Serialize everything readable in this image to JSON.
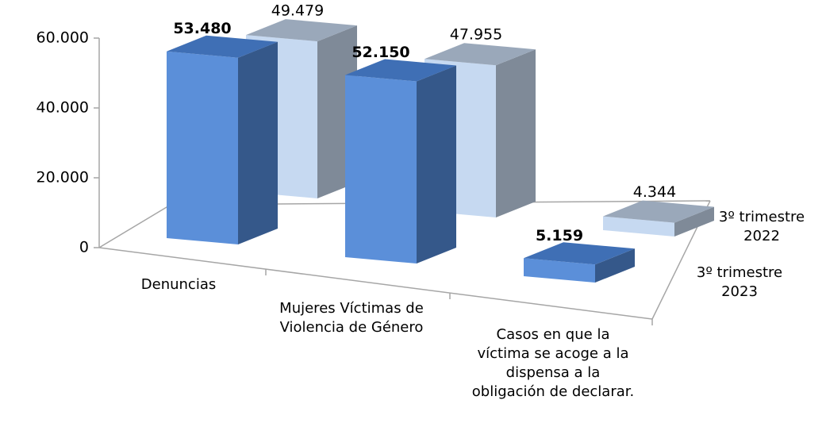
{
  "chart_data": {
    "type": "bar3d",
    "categories": [
      "Denuncias",
      "Mujeres Víctimas de Violencia de Género",
      "Casos en que la víctima se acoge a la dispensa a la obligación de declarar."
    ],
    "series": [
      {
        "name": "3º trimestre 2023",
        "color": "#5b8fd9",
        "values": [
          53480,
          52150,
          5159
        ],
        "value_labels": [
          "53.480",
          "52.150",
          "5.159"
        ]
      },
      {
        "name": "3º trimestre 2022",
        "color": "#c6d9f1",
        "values": [
          49479,
          47955,
          4344
        ],
        "value_labels": [
          "49.479",
          "47.955",
          "4.344"
        ]
      }
    ],
    "ylim": [
      0,
      60000
    ],
    "yticks": [
      0,
      {
        "value": 20000,
        "label": "20.000"
      },
      {
        "value": 40000,
        "label": "40.000"
      },
      {
        "value": 60000,
        "label": "60.000"
      }
    ]
  }
}
